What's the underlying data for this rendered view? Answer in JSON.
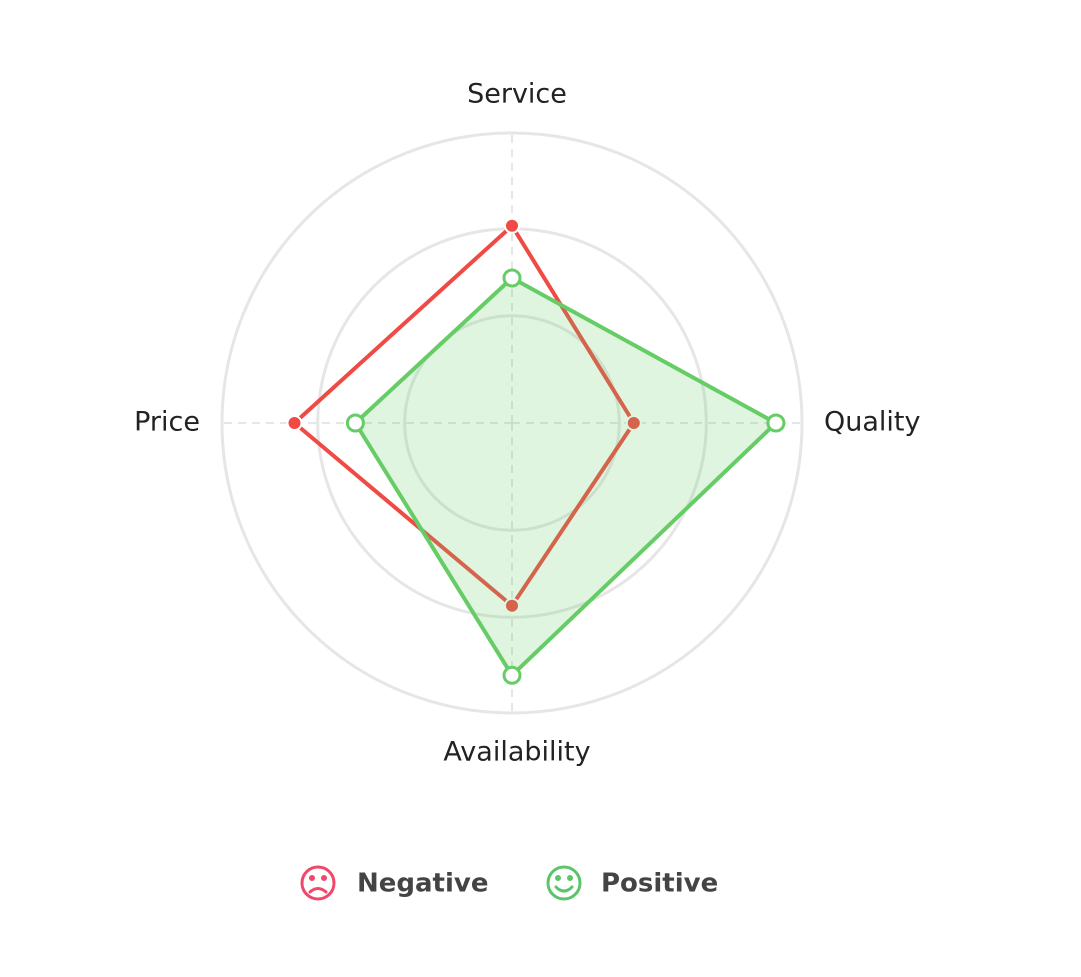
{
  "chart_data": {
    "type": "radar",
    "categories": [
      "Service",
      "Quality",
      "Availability",
      "Price"
    ],
    "rlim": [
      0,
      100
    ],
    "rticks": [
      37,
      67,
      100
    ],
    "series": [
      {
        "name": "Negative",
        "color": "#f04a45",
        "values": [
          68,
          42,
          63,
          75
        ]
      },
      {
        "name": "Positive",
        "color": "#66cc66",
        "values": [
          50,
          91,
          87,
          54
        ]
      }
    ],
    "legend": "bottom"
  }
}
